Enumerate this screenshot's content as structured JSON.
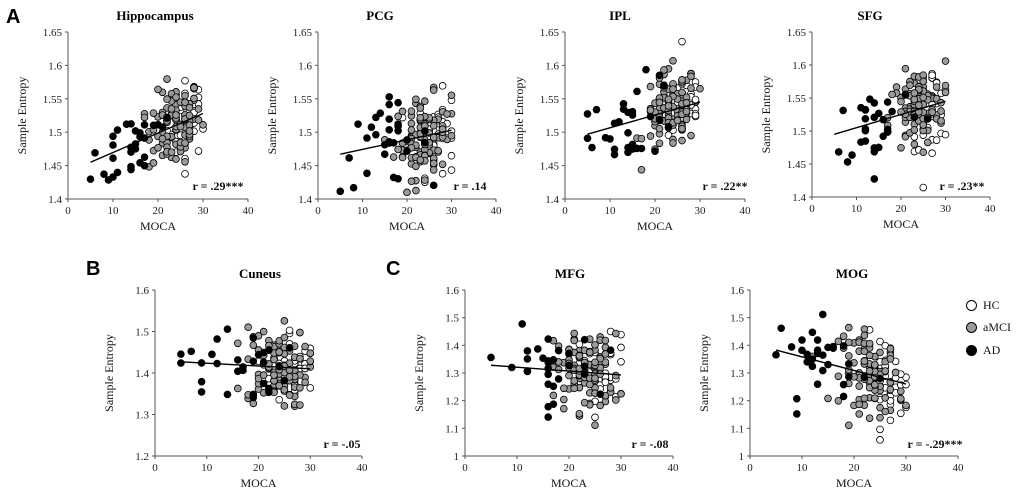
{
  "panel_labels": [
    "A",
    "B",
    "C"
  ],
  "legend": [
    {
      "label": "HC",
      "color": "#ffffff"
    },
    {
      "label": "aMCI",
      "color": "#9a9a9a"
    },
    {
      "label": "AD",
      "color": "#000000"
    }
  ],
  "chart_data": [
    {
      "type": "scatter",
      "title": "Hippocampus",
      "xlabel": "MOCA",
      "ylabel": "Sample Entropy",
      "xlim": [
        0,
        40
      ],
      "ylim": [
        1.4,
        1.65
      ],
      "xticks": [
        0,
        10,
        20,
        30,
        40
      ],
      "yticks": [
        1.4,
        1.45,
        1.5,
        1.55,
        1.6,
        1.65
      ],
      "ytick_labels": [
        "1.4",
        "1.45",
        "1.5",
        "1.55",
        "1.6",
        "1.65"
      ],
      "correlation": "r = .29***",
      "trend": [
        [
          5,
          1.455
        ],
        [
          30,
          1.528
        ]
      ]
    },
    {
      "type": "scatter",
      "title": "PCG",
      "xlabel": "MOCA",
      "ylabel": "Sample Entropy",
      "xlim": [
        0,
        40
      ],
      "ylim": [
        1.4,
        1.65
      ],
      "xticks": [
        0,
        10,
        20,
        30,
        40
      ],
      "yticks": [
        1.4,
        1.45,
        1.5,
        1.55,
        1.6,
        1.65
      ],
      "ytick_labels": [
        "1.4",
        "1.45",
        "1.5",
        "1.55",
        "1.6",
        "1.65"
      ],
      "correlation": "r = .14",
      "trend": [
        [
          5,
          1.467
        ],
        [
          30,
          1.503
        ]
      ]
    },
    {
      "type": "scatter",
      "title": "IPL",
      "xlabel": "MOCA",
      "ylabel": "Sample Entropy",
      "xlim": [
        0,
        40
      ],
      "ylim": [
        1.4,
        1.65
      ],
      "xticks": [
        0,
        10,
        20,
        30,
        40
      ],
      "yticks": [
        1.4,
        1.45,
        1.5,
        1.55,
        1.6,
        1.65
      ],
      "ytick_labels": [
        "1.4",
        "1.45",
        "1.5",
        "1.55",
        "1.6",
        "1.65"
      ],
      "correlation": "r = .22**",
      "trend": [
        [
          5,
          1.497
        ],
        [
          30,
          1.545
        ]
      ]
    },
    {
      "type": "scatter",
      "title": "SFG",
      "xlabel": "MOCA",
      "ylabel": "Sample Entropy",
      "xlim": [
        0,
        40
      ],
      "ylim": [
        1.4,
        1.65
      ],
      "xticks": [
        0,
        10,
        20,
        30,
        40
      ],
      "yticks": [
        1.4,
        1.45,
        1.5,
        1.55,
        1.6,
        1.65
      ],
      "ytick_labels": [
        "1.4",
        "1.45",
        "1.5",
        "1.55",
        "1.6",
        "1.65"
      ],
      "correlation": "r = .23**",
      "trend": [
        [
          5,
          1.495
        ],
        [
          30,
          1.545
        ]
      ]
    },
    {
      "type": "scatter",
      "title": "Cuneus",
      "xlabel": "MOCA",
      "ylabel": "Sample Entropy",
      "xlim": [
        0,
        40
      ],
      "ylim": [
        1.2,
        1.6
      ],
      "xticks": [
        0,
        10,
        20,
        30,
        40
      ],
      "yticks": [
        1.2,
        1.3,
        1.4,
        1.5,
        1.6
      ],
      "ytick_labels": [
        "1.2",
        "1.3",
        "1.4",
        "1.5",
        "1.6"
      ],
      "correlation": "r = -.05",
      "trend": [
        [
          5,
          1.427
        ],
        [
          30,
          1.41
        ]
      ]
    },
    {
      "type": "scatter",
      "title": "MFG",
      "xlabel": "MOCA",
      "ylabel": "Sample Entropy",
      "xlim": [
        0,
        40
      ],
      "ylim": [
        1.0,
        1.6
      ],
      "xticks": [
        0,
        10,
        20,
        30,
        40
      ],
      "yticks": [
        1.0,
        1.1,
        1.2,
        1.3,
        1.4,
        1.5,
        1.6
      ],
      "ytick_labels": [
        "1",
        "1.1",
        "1.2",
        "1.3",
        "1.4",
        "1.5",
        "1.6"
      ],
      "correlation": "r = -.08",
      "trend": [
        [
          5,
          1.328
        ],
        [
          30,
          1.293
        ]
      ]
    },
    {
      "type": "scatter",
      "title": "MOG",
      "xlabel": "MOCA",
      "ylabel": "Sample Entropy",
      "xlim": [
        0,
        40
      ],
      "ylim": [
        1.0,
        1.6
      ],
      "xticks": [
        0,
        10,
        20,
        30,
        40
      ],
      "yticks": [
        1.0,
        1.1,
        1.2,
        1.3,
        1.4,
        1.5,
        1.6
      ],
      "ytick_labels": [
        "1",
        "1.1",
        "1.2",
        "1.3",
        "1.4",
        "1.5",
        "1.6"
      ],
      "correlation": "r = -.29***",
      "trend": [
        [
          5,
          1.383
        ],
        [
          30,
          1.26
        ]
      ]
    }
  ]
}
